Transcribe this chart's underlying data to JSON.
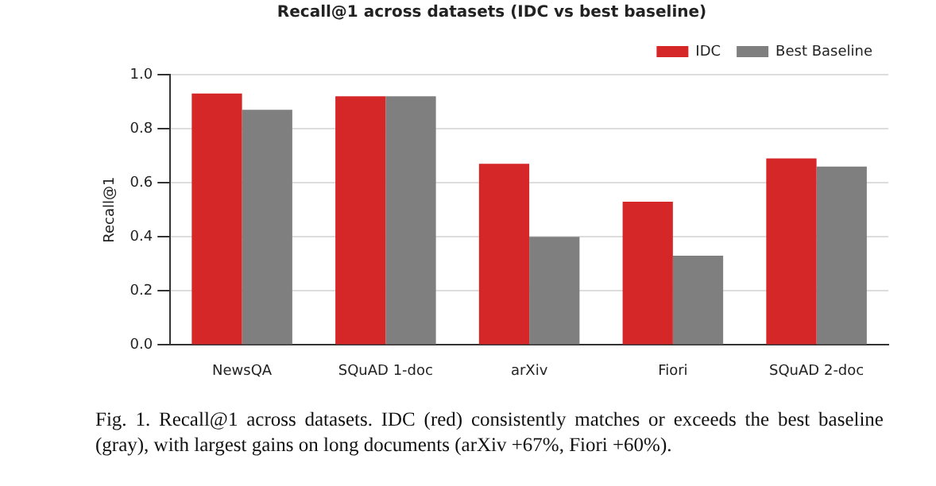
{
  "chart_data": {
    "type": "bar",
    "title": "Recall@1 across datasets (IDC vs best baseline)",
    "ylabel": "Recall@1",
    "categories": [
      "NewsQA",
      "SQuAD 1-doc",
      "arXiv",
      "Fiori",
      "SQuAD 2-doc"
    ],
    "series": [
      {
        "name": "IDC",
        "color": "#d62728",
        "values": [
          0.93,
          0.92,
          0.67,
          0.53,
          0.69
        ]
      },
      {
        "name": "Best Baseline",
        "color": "#7f7f7f",
        "values": [
          0.87,
          0.92,
          0.4,
          0.33,
          0.66
        ]
      }
    ],
    "ylim": [
      0,
      1
    ],
    "yticks": [
      {
        "value": 0,
        "label": "0.0"
      },
      {
        "value": 0.2,
        "label": "0.2"
      },
      {
        "value": 0.4,
        "label": "0.4"
      },
      {
        "value": 0.6,
        "label": "0.6"
      },
      {
        "value": 0.8,
        "label": "0.8"
      },
      {
        "value": 1,
        "label": "1.0"
      }
    ],
    "grid": "y",
    "legend": "top right",
    "annotations": [
      "Fig. 1.  Recall@1 across datasets. IDC (red) consistently matches or exceeds the best baseline (gray), with largest gains on long documents (arXiv +67%, Fiori +60%)."
    ]
  }
}
